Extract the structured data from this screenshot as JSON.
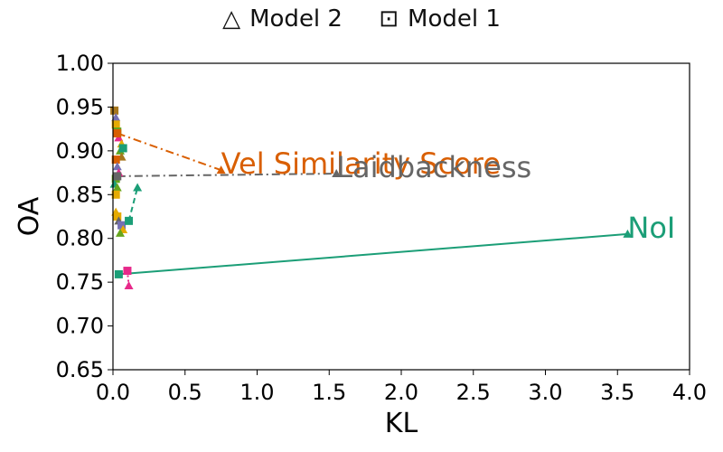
{
  "chart_data": {
    "type": "scatter",
    "xlabel": "KL",
    "ylabel": "OA",
    "xlim": [
      0.0,
      4.0
    ],
    "ylim": [
      0.65,
      1.0
    ],
    "x_ticks": [
      "0.0",
      "0.5",
      "1.0",
      "1.5",
      "2.0",
      "2.5",
      "3.0",
      "3.5",
      "4.0"
    ],
    "y_ticks": [
      "0.65",
      "0.70",
      "0.75",
      "0.80",
      "0.85",
      "0.90",
      "0.95",
      "1.00"
    ],
    "grid": false,
    "legend": {
      "placement": "top-center",
      "entries": [
        {
          "symbol": "△",
          "label": "Model 2"
        },
        {
          "symbol": "⊡",
          "label": "Model 1"
        }
      ]
    },
    "series": [
      {
        "name": "NoI",
        "color": "#1b9e77",
        "linestyle": "solid",
        "model1": {
          "x": 0.04,
          "y": 0.759
        },
        "model2": {
          "x": 3.57,
          "y": 0.805
        },
        "label_at": {
          "x": 3.57,
          "y": 0.805
        }
      },
      {
        "name": "Vel Similarity Score",
        "color": "#d95f02",
        "linestyle": "dashdot",
        "model1": {
          "x": 0.03,
          "y": 0.92
        },
        "model2": {
          "x": 0.75,
          "y": 0.878
        },
        "label_at": {
          "x": 0.75,
          "y": 0.878
        }
      },
      {
        "name": "Laidbackness",
        "color": "#666666",
        "linestyle": "dashdot",
        "model1": {
          "x": 0.03,
          "y": 0.871
        },
        "model2": {
          "x": 1.55,
          "y": 0.874
        },
        "label_at": {
          "x": 1.55,
          "y": 0.874
        }
      },
      {
        "name": "",
        "color": "#1b9e77",
        "linestyle": "dashed",
        "model1": {
          "x": 0.11,
          "y": 0.82
        },
        "model2": {
          "x": 0.17,
          "y": 0.858
        }
      },
      {
        "name": "",
        "color": "#e7298a",
        "linestyle": "dotted",
        "model1": {
          "x": 0.1,
          "y": 0.763
        },
        "model2": {
          "x": 0.11,
          "y": 0.746
        }
      }
    ],
    "cluster_points": [
      {
        "x": 0.01,
        "y": 0.946,
        "marker": "square",
        "color": "#a6761d"
      },
      {
        "x": 0.02,
        "y": 0.938,
        "marker": "triangle",
        "color": "#7570b3"
      },
      {
        "x": 0.02,
        "y": 0.93,
        "marker": "square",
        "color": "#e6ab02"
      },
      {
        "x": 0.03,
        "y": 0.922,
        "marker": "square",
        "color": "#66a61e"
      },
      {
        "x": 0.04,
        "y": 0.915,
        "marker": "triangle",
        "color": "#e7298a"
      },
      {
        "x": 0.06,
        "y": 0.908,
        "marker": "triangle",
        "color": "#e6ab02"
      },
      {
        "x": 0.05,
        "y": 0.9,
        "marker": "triangle",
        "color": "#66a61e"
      },
      {
        "x": 0.07,
        "y": 0.903,
        "marker": "square",
        "color": "#1b9e77"
      },
      {
        "x": 0.06,
        "y": 0.893,
        "marker": "triangle",
        "color": "#a6761d"
      },
      {
        "x": 0.02,
        "y": 0.89,
        "marker": "square",
        "color": "#d95f02"
      },
      {
        "x": 0.03,
        "y": 0.882,
        "marker": "triangle",
        "color": "#7570b3"
      },
      {
        "x": 0.04,
        "y": 0.875,
        "marker": "triangle",
        "color": "#e7298a"
      },
      {
        "x": 0.02,
        "y": 0.868,
        "marker": "square",
        "color": "#66a61e"
      },
      {
        "x": 0.01,
        "y": 0.862,
        "marker": "triangle",
        "color": "#1b9e77"
      },
      {
        "x": 0.03,
        "y": 0.858,
        "marker": "triangle",
        "color": "#66a61e"
      },
      {
        "x": 0.02,
        "y": 0.85,
        "marker": "square",
        "color": "#e6ab02"
      },
      {
        "x": 0.02,
        "y": 0.83,
        "marker": "triangle",
        "color": "#e6ab02"
      },
      {
        "x": 0.03,
        "y": 0.825,
        "marker": "square",
        "color": "#e6ab02"
      },
      {
        "x": 0.04,
        "y": 0.82,
        "marker": "triangle",
        "color": "#666666"
      },
      {
        "x": 0.06,
        "y": 0.815,
        "marker": "square",
        "color": "#7570b3"
      },
      {
        "x": 0.07,
        "y": 0.81,
        "marker": "triangle",
        "color": "#e6ab02"
      },
      {
        "x": 0.05,
        "y": 0.806,
        "marker": "triangle",
        "color": "#66a61e"
      }
    ]
  }
}
